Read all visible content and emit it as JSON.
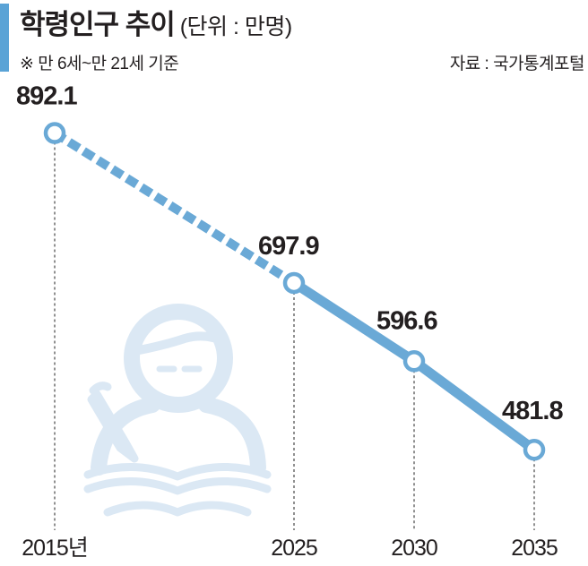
{
  "header": {
    "title": "학령인구 추이",
    "unit": "(단위 : 만명)",
    "subtitle": "※ 만 6세~만 21세 기준",
    "source": "자료 : 국가통계포털"
  },
  "colors": {
    "accent": "#5aa3d6",
    "line": "#6aa9d6",
    "illustration": "#dbe8f4",
    "text": "#231f20"
  },
  "illustration": {
    "icon": "student-studying-icon"
  },
  "chart_data": {
    "type": "line",
    "title": "학령인구 추이",
    "unit": "만명",
    "categories": [
      "2015년",
      "2025",
      "2030",
      "2035"
    ],
    "series": [
      {
        "values": [
          892.1,
          697.9,
          596.6,
          481.8
        ]
      }
    ],
    "data_labels": [
      "892.1",
      "697.9",
      "596.6",
      "481.8"
    ],
    "segment_styles": [
      "dashed",
      "solid",
      "solid"
    ],
    "ylim": [
      380,
      960
    ],
    "grid": false,
    "legend": "none"
  }
}
